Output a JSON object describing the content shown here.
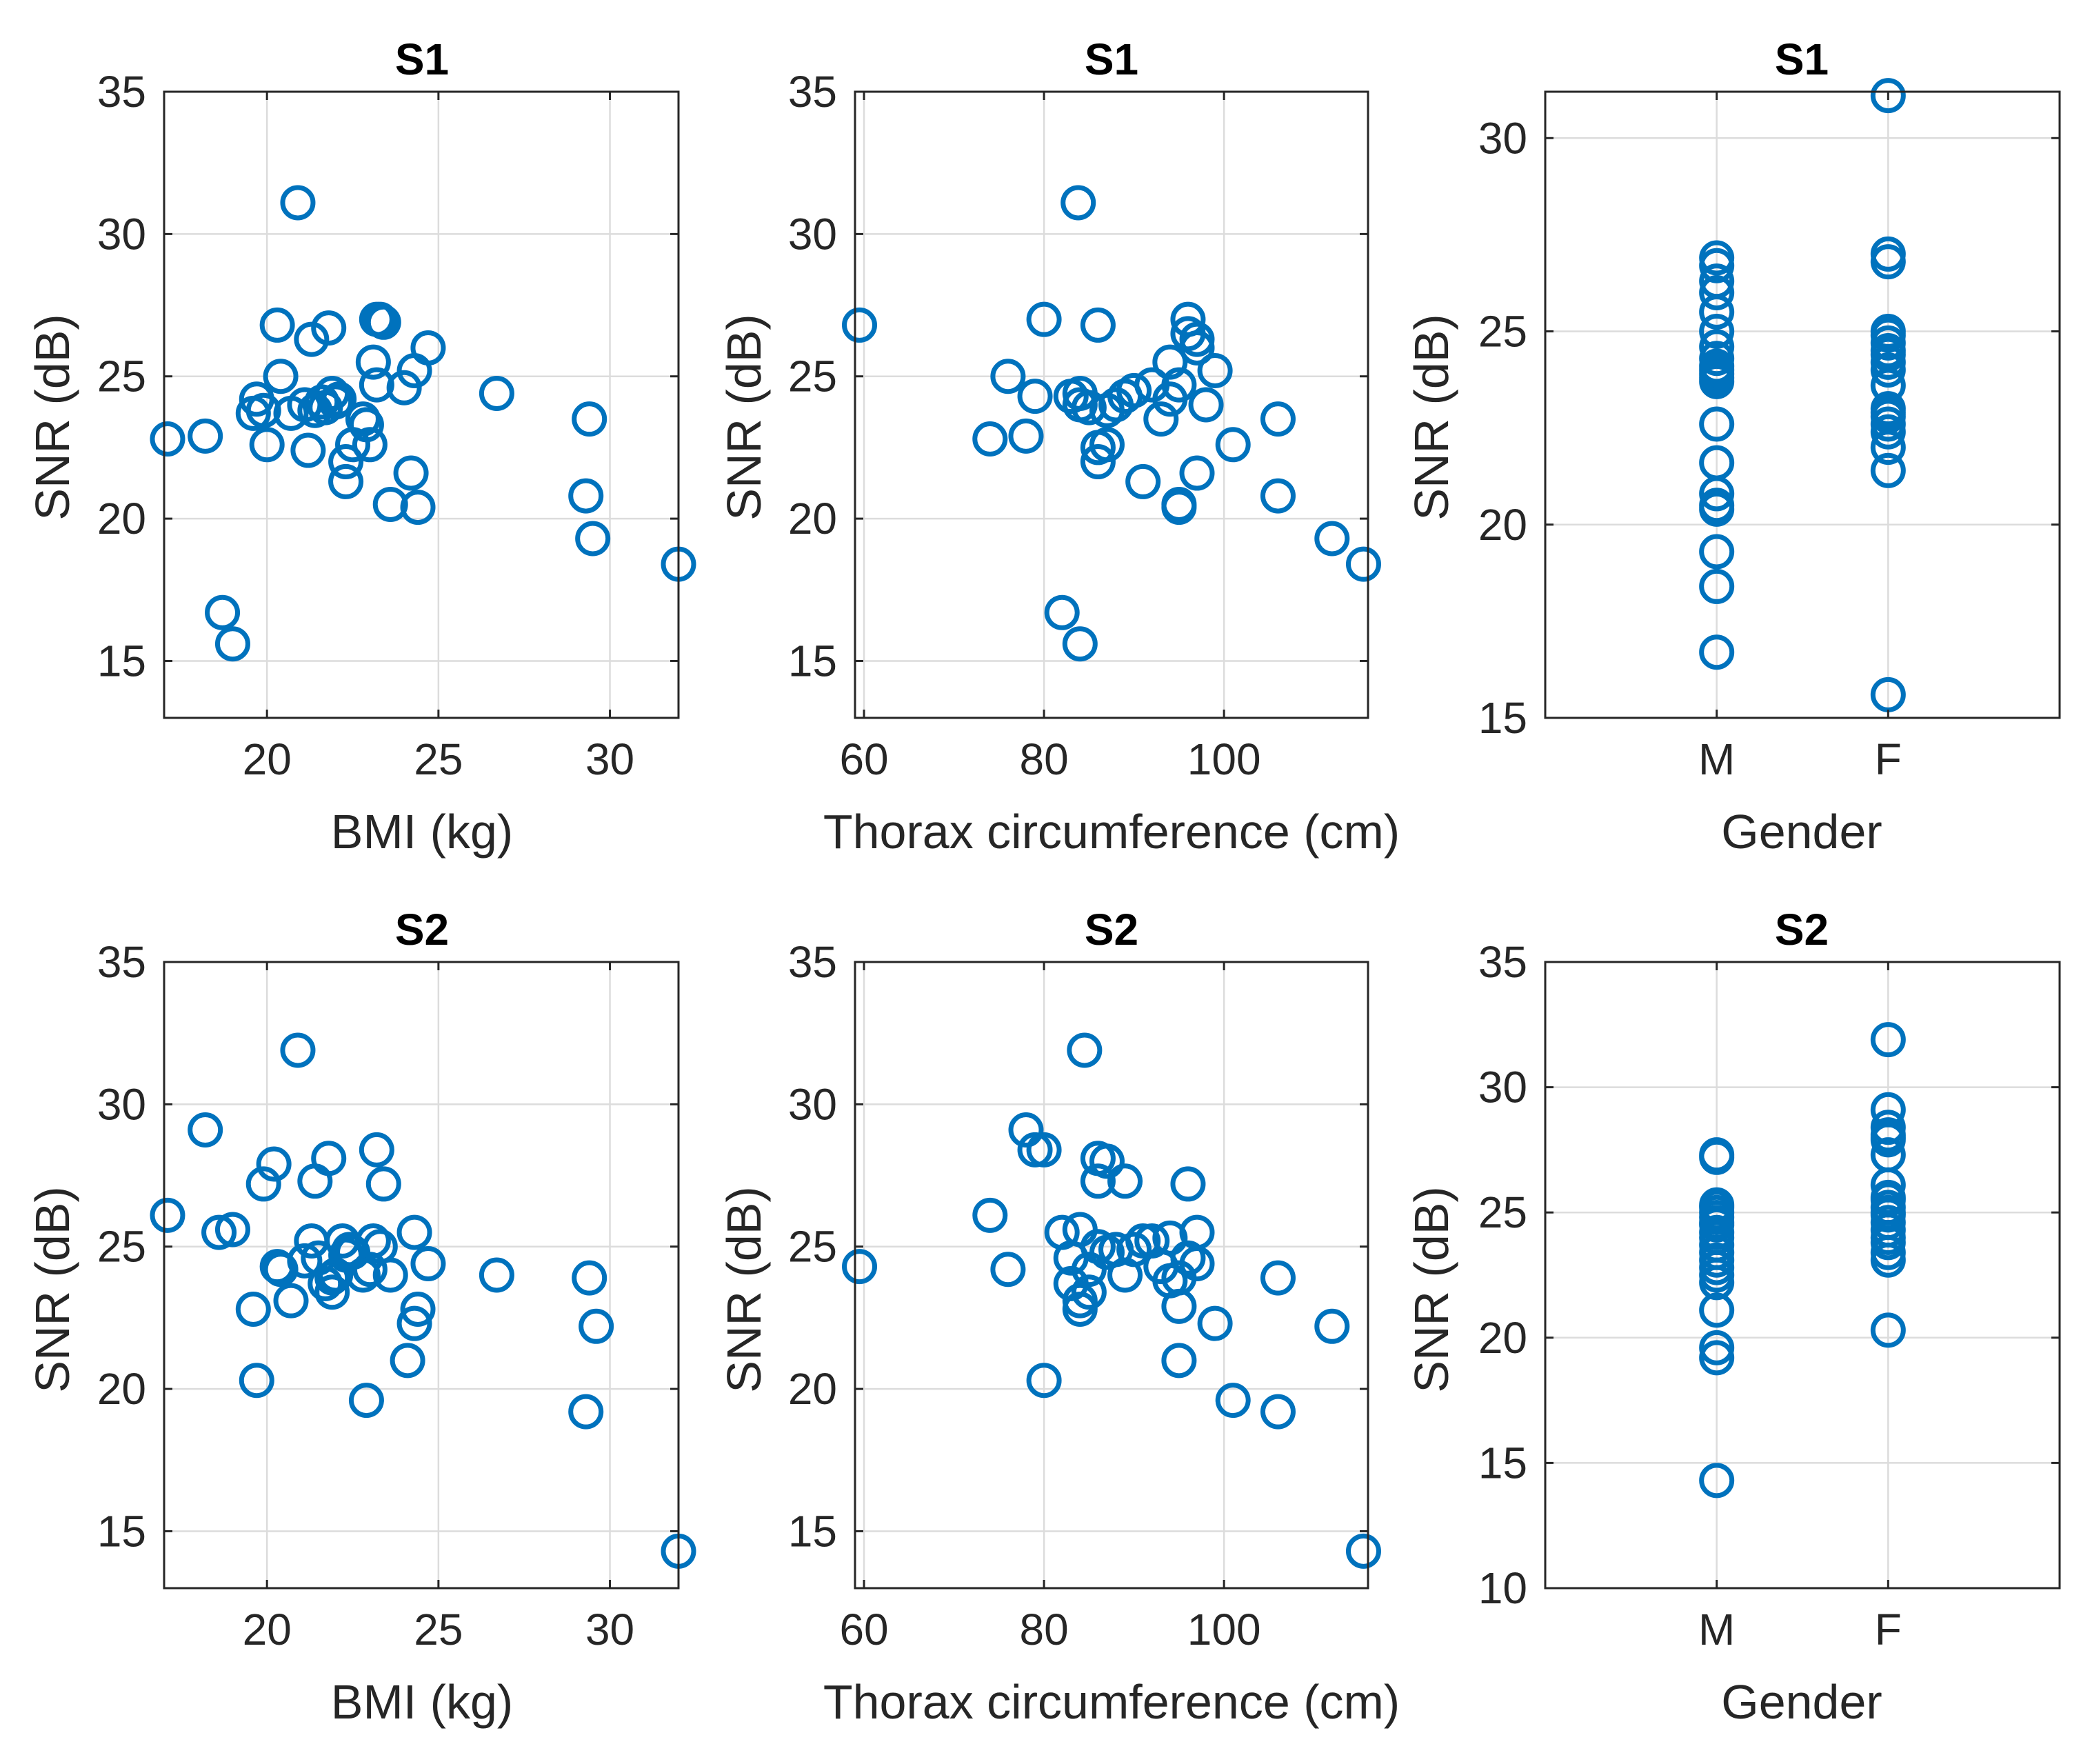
{
  "colors": {
    "marker": "#0072BD",
    "axis": "#262626",
    "grid": "#dcdcdc",
    "background": "#ffffff"
  },
  "chart_data": [
    {
      "id": "s1-bmi",
      "type": "scatter",
      "title": "S1",
      "xlabel": "BMI (kg)",
      "ylabel": "SNR (dB)",
      "xlim": [
        17,
        32
      ],
      "ylim": [
        13,
        35
      ],
      "xticks": [
        20,
        25,
        30
      ],
      "yticks": [
        15,
        20,
        25,
        30,
        35
      ],
      "x": [
        17.1,
        18.2,
        18.7,
        19.0,
        19.6,
        19.7,
        19.9,
        20.0,
        20.3,
        20.4,
        20.9,
        20.7,
        21.1,
        21.2,
        21.3,
        21.4,
        21.6,
        21.7,
        21.8,
        21.9,
        22.0,
        22.1,
        22.3,
        22.3,
        22.5,
        22.8,
        22.9,
        23.0,
        23.1,
        23.2,
        23.2,
        23.3,
        23.4,
        23.6,
        24.0,
        24.2,
        24.3,
        24.4,
        24.7,
        26.7,
        29.3,
        29.4,
        29.5,
        32.0
      ],
      "y": [
        22.8,
        22.9,
        16.7,
        15.6,
        23.7,
        24.2,
        23.8,
        22.6,
        26.8,
        25.0,
        31.1,
        23.7,
        24.0,
        22.4,
        26.3,
        23.8,
        24.1,
        23.9,
        26.7,
        24.4,
        24.1,
        24.2,
        21.3,
        22.0,
        22.6,
        23.5,
        23.3,
        22.6,
        25.5,
        24.7,
        27.0,
        27.0,
        26.9,
        20.5,
        24.6,
        21.6,
        25.2,
        20.4,
        26.0,
        24.4,
        20.8,
        23.5,
        19.3,
        18.4
      ]
    },
    {
      "id": "s1-thorax",
      "type": "scatter",
      "title": "S1",
      "xlabel": "Thorax circumference (cm)",
      "ylabel": "SNR (dB)",
      "xlim": [
        59,
        116
      ],
      "ylim": [
        13,
        35
      ],
      "xticks": [
        60,
        80,
        100
      ],
      "yticks": [
        15,
        20,
        25,
        30,
        35
      ],
      "x": [
        59.5,
        74,
        76,
        78,
        79,
        80,
        82,
        83,
        84,
        83.8,
        84,
        84,
        85,
        86,
        86,
        86,
        87,
        87,
        88,
        89,
        90,
        91,
        92,
        93,
        94,
        94,
        95,
        95,
        95,
        96,
        96,
        97,
        97,
        97,
        98,
        99,
        101,
        106,
        106,
        112,
        115.5
      ],
      "y": [
        26.8,
        22.8,
        25.0,
        22.9,
        24.3,
        27.0,
        16.7,
        24.3,
        15.6,
        31.1,
        24.4,
        24.0,
        23.9,
        26.8,
        22.5,
        22.0,
        22.6,
        23.8,
        24.0,
        24.3,
        24.5,
        21.3,
        24.7,
        23.5,
        25.5,
        24.2,
        20.5,
        20.4,
        24.7,
        27.0,
        26.5,
        21.6,
        26.3,
        26.0,
        24.0,
        25.2,
        22.6,
        20.8,
        23.5,
        19.3,
        18.4
      ]
    },
    {
      "id": "s1-gender",
      "type": "scatter",
      "title": "S1",
      "xlabel": "Gender",
      "ylabel": "SNR (dB)",
      "xlim": [
        0,
        3
      ],
      "ylim": [
        15,
        31.2
      ],
      "xticks": [
        1,
        2
      ],
      "xticklabels": [
        "M",
        "F"
      ],
      "yticks": [
        15,
        20,
        25,
        30
      ],
      "x": [
        1,
        1,
        1,
        1,
        1,
        1,
        1,
        1,
        1,
        1,
        1,
        1,
        1,
        1,
        1,
        1,
        1,
        1,
        1,
        1,
        1,
        2,
        2,
        2,
        2,
        2,
        2,
        2,
        2,
        2,
        2,
        2,
        2,
        2,
        2,
        2,
        2,
        2,
        2,
        2
      ],
      "y": [
        26.9,
        26.7,
        26.3,
        26.0,
        25.5,
        25.0,
        24.6,
        24.3,
        24.1,
        23.9,
        23.7,
        22.6,
        21.6,
        20.8,
        20.5,
        20.4,
        19.3,
        18.4,
        16.7,
        24.0,
        23.8,
        31.1,
        27.0,
        26.8,
        25.0,
        24.7,
        24.4,
        24.2,
        24.0,
        23.6,
        23.0,
        22.8,
        22.6,
        22.4,
        22.0,
        21.4,
        15.6,
        24.9,
        24.5,
        22.9
      ]
    },
    {
      "id": "s2-bmi",
      "type": "scatter",
      "title": "S2",
      "xlabel": "BMI (kg)",
      "ylabel": "SNR (dB)",
      "xlim": [
        17,
        32
      ],
      "ylim": [
        13,
        35
      ],
      "xticks": [
        20,
        25,
        30
      ],
      "yticks": [
        15,
        20,
        25,
        30,
        35
      ],
      "x": [
        17.1,
        18.2,
        18.6,
        19.0,
        19.6,
        19.7,
        19.9,
        20.2,
        20.3,
        20.4,
        20.7,
        20.9,
        21.1,
        21.3,
        21.4,
        21.5,
        21.7,
        21.8,
        21.9,
        21.9,
        22.0,
        22.2,
        22.3,
        22.4,
        22.5,
        22.8,
        22.9,
        23.0,
        23.1,
        23.2,
        23.3,
        23.4,
        23.6,
        24.1,
        24.3,
        24.3,
        24.4,
        24.7,
        26.7,
        29.3,
        29.4,
        29.6,
        32.0
      ],
      "y": [
        26.1,
        29.1,
        25.5,
        25.6,
        22.8,
        20.3,
        27.2,
        27.9,
        24.3,
        24.2,
        23.1,
        31.9,
        24.5,
        25.2,
        27.3,
        24.6,
        23.7,
        28.1,
        23.4,
        23.9,
        24.0,
        25.2,
        24.7,
        24.9,
        24.8,
        24.0,
        19.6,
        24.2,
        25.2,
        28.4,
        25.0,
        27.2,
        24.0,
        21.0,
        25.5,
        22.3,
        22.8,
        24.4,
        24.0,
        19.2,
        23.9,
        22.2,
        14.3
      ]
    },
    {
      "id": "s2-thorax",
      "type": "scatter",
      "title": "S2",
      "xlabel": "Thorax circumference (cm)",
      "ylabel": "SNR (dB)",
      "xlim": [
        59,
        116
      ],
      "ylim": [
        13,
        35
      ],
      "xticks": [
        60,
        80,
        100
      ],
      "yticks": [
        15,
        20,
        25,
        30,
        35
      ],
      "x": [
        59.5,
        74,
        76,
        78,
        79,
        80,
        80,
        82,
        83,
        83,
        84,
        84,
        84,
        84.5,
        85,
        85,
        86,
        86,
        86,
        87,
        87,
        88,
        89,
        89,
        90,
        91,
        92,
        93,
        94,
        94,
        95,
        95,
        95,
        96,
        96,
        97,
        97,
        99,
        101,
        106,
        106,
        112,
        115.5
      ],
      "y": [
        24.3,
        26.1,
        24.2,
        29.1,
        28.4,
        20.3,
        28.4,
        25.5,
        23.7,
        24.6,
        25.6,
        23.1,
        22.8,
        31.9,
        23.4,
        24.2,
        28.1,
        27.3,
        25.0,
        28.0,
        24.8,
        24.9,
        27.3,
        24.0,
        24.9,
        25.2,
        25.2,
        24.3,
        25.3,
        23.8,
        21.0,
        23.9,
        22.9,
        27.2,
        24.6,
        25.5,
        24.4,
        22.3,
        19.6,
        19.2,
        23.9,
        22.2,
        14.3
      ]
    },
    {
      "id": "s2-gender",
      "type": "scatter",
      "title": "S2",
      "xlabel": "Gender",
      "ylabel": "SNR (dB)",
      "xlim": [
        0,
        3
      ],
      "ylim": [
        10,
        35
      ],
      "xticks": [
        1,
        2
      ],
      "xticklabels": [
        "M",
        "F"
      ],
      "yticks": [
        10,
        15,
        20,
        25,
        30,
        35
      ],
      "x": [
        1,
        1,
        1,
        1,
        1,
        1,
        1,
        1,
        1,
        1,
        1,
        1,
        1,
        1,
        1,
        1,
        1,
        1,
        1,
        1,
        2,
        2,
        2,
        2,
        2,
        2,
        2,
        2,
        2,
        2,
        2,
        2,
        2,
        2,
        2,
        2,
        2,
        2,
        2,
        2
      ],
      "y": [
        27.3,
        27.2,
        25.3,
        25.0,
        24.8,
        24.5,
        24.2,
        24.0,
        23.7,
        22.8,
        22.5,
        22.2,
        21.1,
        19.6,
        19.2,
        14.3,
        24.6,
        23.4,
        25.2,
        23.1,
        31.9,
        29.1,
        28.4,
        28.1,
        27.3,
        26.1,
        25.6,
        25.5,
        25.2,
        24.9,
        24.6,
        24.3,
        24.0,
        23.8,
        23.4,
        23.1,
        20.3,
        27.9,
        28.0,
        25.0
      ]
    }
  ]
}
